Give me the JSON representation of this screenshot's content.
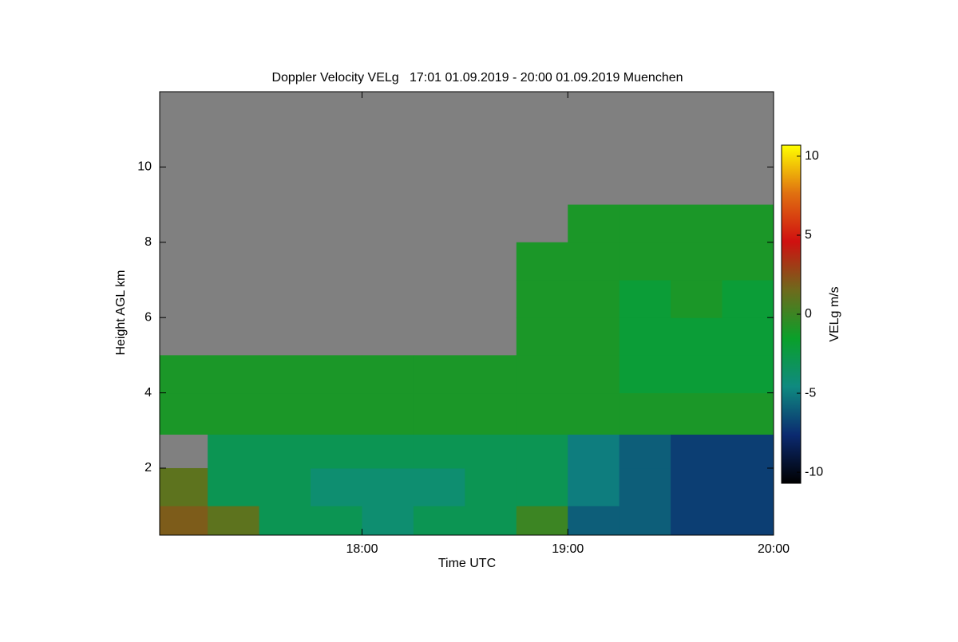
{
  "chart_data": {
    "type": "heatmap",
    "title": "Doppler Velocity VELg   17:01 01.09.2019 - 20:00 01.09.2019 Muenchen",
    "xlabel": "Time UTC",
    "ylabel": "Height AGL km",
    "colorbar_label": "VELg m/s",
    "xbins": [
      17.0167,
      17.25,
      17.5,
      17.75,
      18,
      18.25,
      18.5,
      18.75,
      19,
      19.25,
      19.5,
      19.75,
      20
    ],
    "ybins": [
      0.22,
      1,
      2,
      2.9,
      4,
      5,
      6,
      7,
      8,
      9,
      10,
      11,
      12
    ],
    "values": [
      [
        2,
        1,
        -3,
        -3,
        -4,
        -3,
        -3,
        0,
        -6,
        -6,
        -7,
        -7
      ],
      [
        1,
        -3,
        -3,
        -4,
        -4,
        -4,
        -3,
        -3,
        -5,
        -6,
        -7,
        -7
      ],
      [
        null,
        -3,
        -3,
        -3,
        -3,
        -3,
        -3,
        -3,
        -5,
        -6,
        -7,
        -7
      ],
      [
        -1,
        -1,
        -1,
        -1,
        -1,
        -1,
        -1,
        -1,
        -1,
        -1,
        -1,
        -1
      ],
      [
        -1,
        -1,
        -1,
        -1,
        -1,
        -1,
        -1,
        -1,
        -1,
        -2,
        -2,
        -2
      ],
      [
        null,
        null,
        null,
        null,
        null,
        null,
        null,
        -1,
        -1,
        -2,
        -2,
        -2
      ],
      [
        null,
        null,
        null,
        null,
        null,
        null,
        null,
        -1,
        -1,
        -2,
        -1,
        -2
      ],
      [
        null,
        null,
        null,
        null,
        null,
        null,
        null,
        -1,
        -1,
        -1,
        -1,
        -1
      ],
      [
        null,
        null,
        null,
        null,
        null,
        null,
        null,
        null,
        -1,
        -1,
        -1,
        -1
      ],
      [
        null,
        null,
        null,
        null,
        null,
        null,
        null,
        null,
        null,
        null,
        null,
        null
      ],
      [
        null,
        null,
        null,
        null,
        null,
        null,
        null,
        null,
        null,
        null,
        null,
        null
      ],
      [
        null,
        null,
        null,
        null,
        null,
        null,
        null,
        null,
        null,
        null,
        null,
        null
      ]
    ],
    "xlim": [
      17.0167,
      20
    ],
    "xticks": [
      {
        "value": 18,
        "label": "18:00"
      },
      {
        "value": 19,
        "label": "19:00"
      },
      {
        "value": 20,
        "label": "20:00"
      }
    ],
    "ylim": [
      0.22,
      12
    ],
    "yticks": [
      2,
      4,
      6,
      8,
      10
    ],
    "clim": [
      -10.7,
      10.7
    ],
    "cticks": [
      10,
      5,
      0,
      -5,
      -10
    ],
    "colormap": [
      "#000000",
      "#0b2a70",
      "#0f8a80",
      "#0aa02a",
      "#6e6a1c",
      "#d01010",
      "#e07010",
      "#ffff00"
    ],
    "nan_color": "#808080"
  }
}
